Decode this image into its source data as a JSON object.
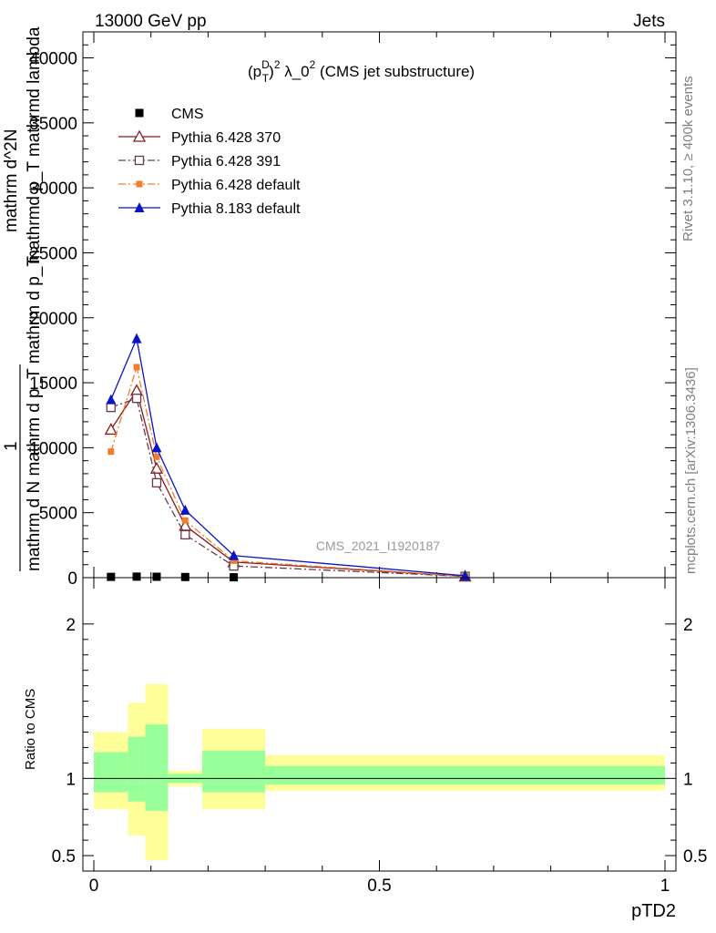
{
  "header": {
    "left": "13000 GeV pp",
    "right": "Jets"
  },
  "side_labels": {
    "top": "Rivet 3.1.10, ≥ 400k events",
    "bottom": "mcplots.cern.ch [arXiv:1306.3436]"
  },
  "chart_data": [
    {
      "type": "line",
      "panel": "main",
      "title": "(p_T^D)^2 λ_0^2 (CMS jet substructure)",
      "title_parts": {
        "p": "(p",
        "sup": "D",
        "sub": "T",
        "rest": ")",
        "sup2": "2",
        "lambda": " λ_0",
        "sup3": "2",
        "tail": " (CMS jet substructure)"
      },
      "watermark": "CMS_2021_I1920187",
      "ylabel_lines": [
        "1",
        "mathrm d N mathrm d p_T mathrm d p_T",
        "mathrm d^2N",
        "mathrmd p_T mathrmd lambda"
      ],
      "xlim": [
        0,
        1
      ],
      "ylim": [
        0,
        42000
      ],
      "y_ticks": [
        0,
        5000,
        10000,
        15000,
        20000,
        25000,
        30000,
        35000,
        40000
      ],
      "y_tick_labels": [
        "0",
        "5000",
        "10000",
        "15000",
        "20000",
        "25000",
        "30000",
        "35000",
        "40000"
      ],
      "series": [
        {
          "name": "CMS",
          "color": "#000000",
          "marker": "square-filled",
          "line": "none",
          "x": [
            0.03,
            0.075,
            0.11,
            0.16,
            0.245
          ],
          "y": [
            60,
            80,
            70,
            50,
            30
          ]
        },
        {
          "name": "Pythia 6.428 370",
          "color": "#8b1a1a",
          "marker": "triangle-open",
          "line": "solid",
          "x": [
            0.03,
            0.075,
            0.11,
            0.16,
            0.245,
            0.65
          ],
          "y": [
            11400,
            14400,
            8400,
            4000,
            1200,
            100
          ]
        },
        {
          "name": "Pythia 6.428 391",
          "color": "#6b3a4a",
          "marker": "square-open",
          "line": "dashdot",
          "x": [
            0.03,
            0.075,
            0.11,
            0.16,
            0.245,
            0.65
          ],
          "y": [
            13100,
            13800,
            7300,
            3300,
            900,
            100
          ]
        },
        {
          "name": "Pythia 6.428 default",
          "color": "#f07e2f",
          "marker": "square-filled-small",
          "line": "dashdot",
          "x": [
            0.03,
            0.075,
            0.11,
            0.16,
            0.245,
            0.65
          ],
          "y": [
            9700,
            16200,
            9300,
            4400,
            1300,
            100
          ]
        },
        {
          "name": "Pythia 8.183 default",
          "color": "#0a14c8",
          "marker": "triangle-filled",
          "line": "solid",
          "x": [
            0.03,
            0.075,
            0.11,
            0.16,
            0.245,
            0.65
          ],
          "y": [
            13700,
            18400,
            10000,
            5200,
            1700,
            150
          ]
        }
      ]
    },
    {
      "type": "area",
      "panel": "ratio",
      "ylabel": "Ratio to CMS",
      "xlabel": "pTD2",
      "xlim": [
        0,
        1
      ],
      "ylim": [
        0.4,
        2.3
      ],
      "y_ticks": [
        0.5,
        1,
        2
      ],
      "y_tick_labels": [
        "0.5",
        "1",
        "2"
      ],
      "x_ticks": [
        0,
        0.5,
        1
      ],
      "x_tick_labels": [
        "0",
        "0.5",
        "1"
      ],
      "reference_line": 1,
      "bands": [
        {
          "x0": 0.0,
          "x1": 0.06,
          "y_lo": 0.8,
          "y_hi": 1.3,
          "y_lo_inner": 0.91,
          "y_hi_inner": 1.17
        },
        {
          "x0": 0.06,
          "x1": 0.09,
          "y_lo": 0.63,
          "y_hi": 1.49,
          "y_lo_inner": 0.85,
          "y_hi_inner": 1.27
        },
        {
          "x0": 0.09,
          "x1": 0.13,
          "y_lo": 0.47,
          "y_hi": 1.61,
          "y_lo_inner": 0.79,
          "y_hi_inner": 1.35
        },
        {
          "x0": 0.13,
          "x1": 0.19,
          "y_lo": 0.95,
          "y_hi": 1.05,
          "y_lo_inner": 0.97,
          "y_hi_inner": 1.03
        },
        {
          "x0": 0.19,
          "x1": 0.3,
          "y_lo": 0.8,
          "y_hi": 1.32,
          "y_lo_inner": 0.91,
          "y_hi_inner": 1.18
        },
        {
          "x0": 0.3,
          "x1": 1.0,
          "y_lo": 0.92,
          "y_hi": 1.15,
          "y_lo_inner": 0.96,
          "y_hi_inner": 1.08
        }
      ],
      "band_colors": {
        "outer": "#ffff99",
        "inner": "#99ff99"
      }
    }
  ]
}
